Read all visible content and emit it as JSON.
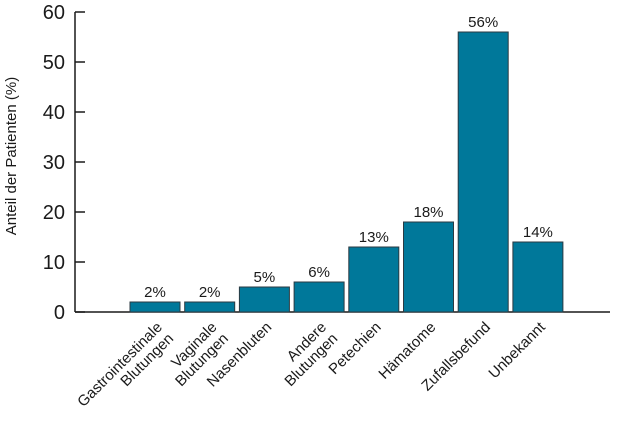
{
  "chart_data": {
    "type": "bar",
    "title": "",
    "xlabel": "",
    "ylabel": "Anteil der Patienten (%)",
    "ylim": [
      0,
      60
    ],
    "yticks": [
      0,
      10,
      20,
      30,
      40,
      50,
      60
    ],
    "grid": false,
    "categories": [
      [
        "Gastrointestinale",
        "Blutungen"
      ],
      [
        "Vaginale",
        "Blutungen"
      ],
      [
        "Nasenbluten"
      ],
      [
        "Andere",
        "Blutungen"
      ],
      [
        "Petechien"
      ],
      [
        "Hämatome"
      ],
      [
        "Zufallsbefund"
      ],
      [
        "Unbekannt"
      ]
    ],
    "values": [
      2,
      2,
      5,
      6,
      13,
      18,
      56,
      14
    ],
    "value_labels": [
      "2%",
      "2%",
      "5%",
      "6%",
      "13%",
      "18%",
      "56%",
      "14%"
    ],
    "bar_color": "#00789a",
    "bar_edge_color": "#2b3a42",
    "axis_color": "#1a1a1a"
  }
}
